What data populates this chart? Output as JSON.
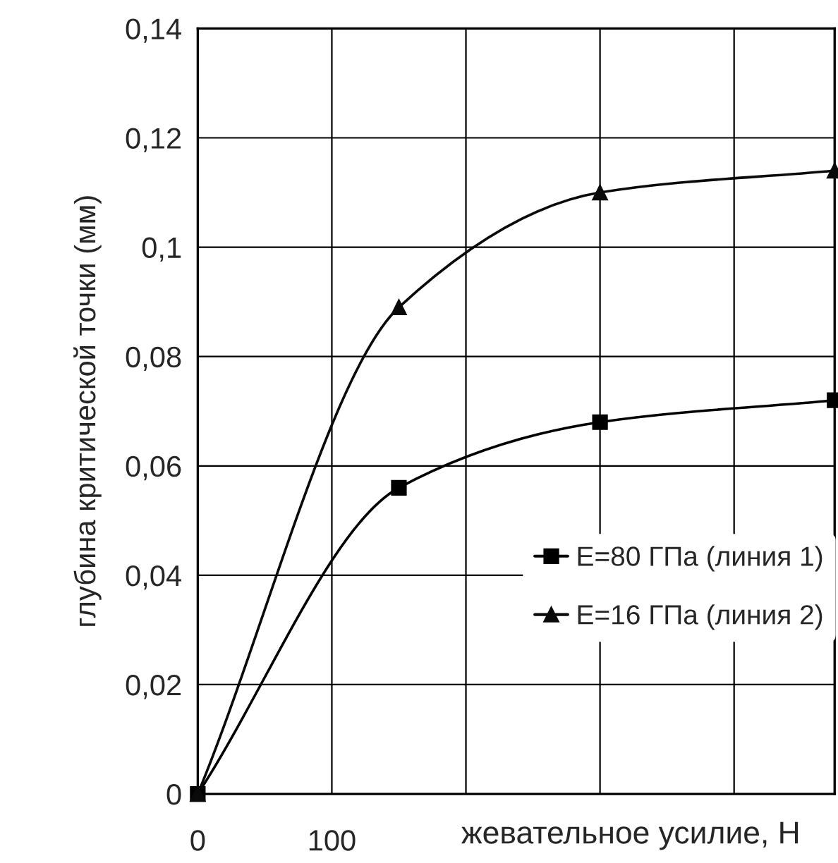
{
  "chart_data": {
    "type": "line",
    "xlabel": "жевательное усилие, Н",
    "ylabel": "глубина критической точки (мм)",
    "x": [
      0,
      150,
      300,
      475
    ],
    "series": [
      {
        "name": "E=80 ГПа (линия 1)",
        "color": "#000000",
        "marker": "square",
        "values": [
          0,
          0.056,
          0.068,
          0.072
        ]
      },
      {
        "name": "E=16 ГПа (линия 2)",
        "color": "#0a0a0a",
        "marker": "triangle",
        "values": [
          0,
          0.089,
          0.11,
          0.114
        ]
      }
    ],
    "xlim": [
      0,
      475
    ],
    "xticks": [
      0,
      100,
      {
        "value": 200,
        "label": null
      },
      {
        "value": 300,
        "label": null
      },
      {
        "value": 400,
        "label": null
      }
    ],
    "ylim": [
      0,
      0.14
    ],
    "yticks": [
      0,
      {
        "value": 0.02,
        "label": "0,02"
      },
      {
        "value": 0.04,
        "label": "0,04"
      },
      {
        "value": 0.06,
        "label": "0,06"
      },
      {
        "value": 0.08,
        "label": "0,08"
      },
      {
        "value": 0.1,
        "label": "0,1"
      },
      {
        "value": 0.12,
        "label": "0,12"
      },
      {
        "value": 0.14,
        "label": "0,14"
      }
    ],
    "grid": true,
    "legend": "lower right",
    "line_style": "solid"
  }
}
